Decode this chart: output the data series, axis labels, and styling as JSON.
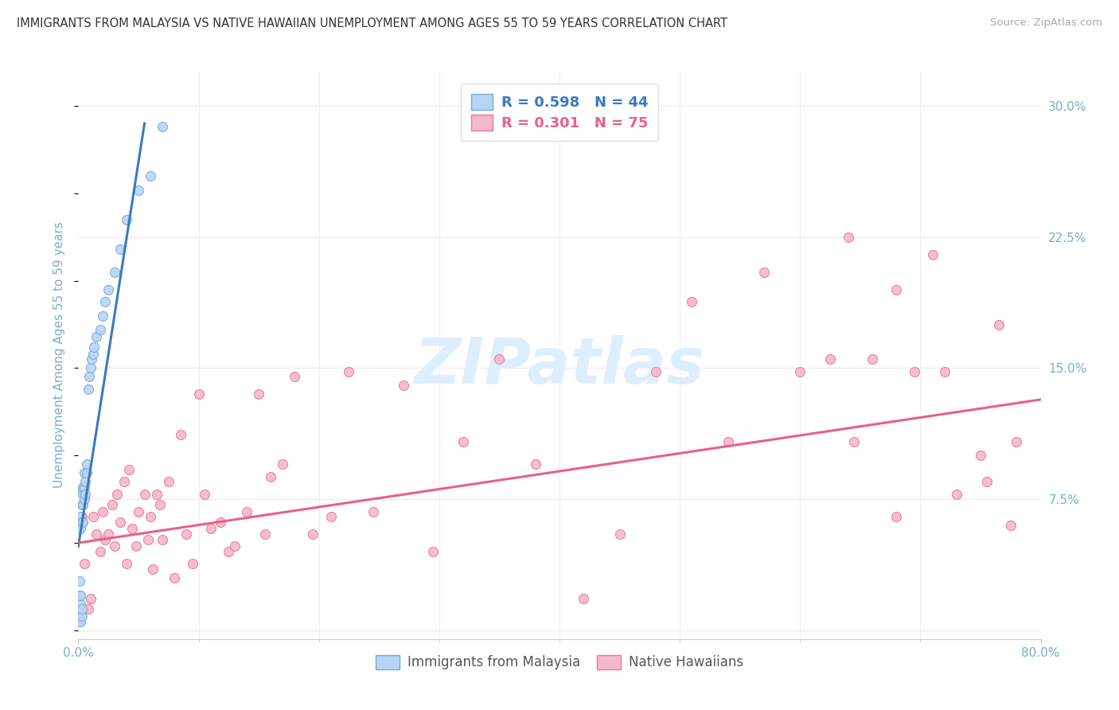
{
  "title": "IMMIGRANTS FROM MALAYSIA VS NATIVE HAWAIIAN UNEMPLOYMENT AMONG AGES 55 TO 59 YEARS CORRELATION CHART",
  "source": "Source: ZipAtlas.com",
  "ylabel": "Unemployment Among Ages 55 to 59 years",
  "xlim": [
    0,
    0.8
  ],
  "ylim": [
    -0.005,
    0.32
  ],
  "yticks_right": [
    0.0,
    0.075,
    0.15,
    0.225,
    0.3
  ],
  "ytick_right_labels": [
    "",
    "7.5%",
    "15.0%",
    "22.5%",
    "30.0%"
  ],
  "legend_blue_r": "0.598",
  "legend_blue_n": "44",
  "legend_pink_r": "0.301",
  "legend_pink_n": "75",
  "blue_color": "#b8d4f5",
  "blue_edge_color": "#7aaad8",
  "pink_color": "#f5b8c8",
  "pink_edge_color": "#e87a96",
  "blue_line_color": "#3a7abf",
  "pink_line_color": "#e8608a",
  "watermark_text": "ZIPatlas",
  "watermark_color": "#ddeeff",
  "title_color": "#333333",
  "axis_label_color": "#7aaad8",
  "right_tick_color": "#7aaad8",
  "grid_color": "#ebebf2",
  "blue_scatter_x": [
    0.001,
    0.001,
    0.001,
    0.001,
    0.001,
    0.002,
    0.002,
    0.002,
    0.002,
    0.002,
    0.002,
    0.003,
    0.003,
    0.003,
    0.003,
    0.003,
    0.004,
    0.004,
    0.004,
    0.004,
    0.005,
    0.005,
    0.005,
    0.006,
    0.006,
    0.007,
    0.007,
    0.008,
    0.009,
    0.01,
    0.011,
    0.012,
    0.013,
    0.015,
    0.018,
    0.02,
    0.022,
    0.025,
    0.03,
    0.035,
    0.04,
    0.05,
    0.06,
    0.07
  ],
  "blue_scatter_y": [
    0.005,
    0.008,
    0.012,
    0.02,
    0.028,
    0.005,
    0.01,
    0.015,
    0.02,
    0.058,
    0.065,
    0.008,
    0.012,
    0.062,
    0.072,
    0.08,
    0.062,
    0.072,
    0.078,
    0.082,
    0.075,
    0.082,
    0.09,
    0.078,
    0.085,
    0.09,
    0.095,
    0.138,
    0.145,
    0.15,
    0.155,
    0.158,
    0.162,
    0.168,
    0.172,
    0.18,
    0.188,
    0.195,
    0.205,
    0.218,
    0.235,
    0.252,
    0.26,
    0.288
  ],
  "pink_scatter_x": [
    0.003,
    0.005,
    0.008,
    0.01,
    0.012,
    0.015,
    0.018,
    0.02,
    0.022,
    0.025,
    0.028,
    0.03,
    0.032,
    0.035,
    0.038,
    0.04,
    0.042,
    0.045,
    0.048,
    0.05,
    0.055,
    0.058,
    0.06,
    0.062,
    0.065,
    0.068,
    0.07,
    0.075,
    0.08,
    0.085,
    0.09,
    0.095,
    0.1,
    0.105,
    0.11,
    0.118,
    0.125,
    0.13,
    0.14,
    0.15,
    0.155,
    0.16,
    0.17,
    0.18,
    0.195,
    0.21,
    0.225,
    0.245,
    0.27,
    0.295,
    0.32,
    0.35,
    0.38,
    0.42,
    0.45,
    0.48,
    0.51,
    0.54,
    0.57,
    0.6,
    0.625,
    0.645,
    0.66,
    0.68,
    0.695,
    0.71,
    0.73,
    0.75,
    0.765,
    0.775,
    0.64,
    0.68,
    0.72,
    0.755,
    0.78
  ],
  "pink_scatter_y": [
    0.065,
    0.038,
    0.012,
    0.018,
    0.065,
    0.055,
    0.045,
    0.068,
    0.052,
    0.055,
    0.072,
    0.048,
    0.078,
    0.062,
    0.085,
    0.038,
    0.092,
    0.058,
    0.048,
    0.068,
    0.078,
    0.052,
    0.065,
    0.035,
    0.078,
    0.072,
    0.052,
    0.085,
    0.03,
    0.112,
    0.055,
    0.038,
    0.135,
    0.078,
    0.058,
    0.062,
    0.045,
    0.048,
    0.068,
    0.135,
    0.055,
    0.088,
    0.095,
    0.145,
    0.055,
    0.065,
    0.148,
    0.068,
    0.14,
    0.045,
    0.108,
    0.155,
    0.095,
    0.018,
    0.055,
    0.148,
    0.188,
    0.108,
    0.205,
    0.148,
    0.155,
    0.108,
    0.155,
    0.065,
    0.148,
    0.215,
    0.078,
    0.1,
    0.175,
    0.06,
    0.225,
    0.195,
    0.148,
    0.085,
    0.108
  ],
  "blue_trend_x": [
    0.0,
    0.055
  ],
  "blue_trend_y": [
    0.048,
    0.29
  ],
  "pink_trend_x": [
    0.0,
    0.8
  ],
  "pink_trend_y": [
    0.05,
    0.132
  ],
  "marker_size": 75
}
